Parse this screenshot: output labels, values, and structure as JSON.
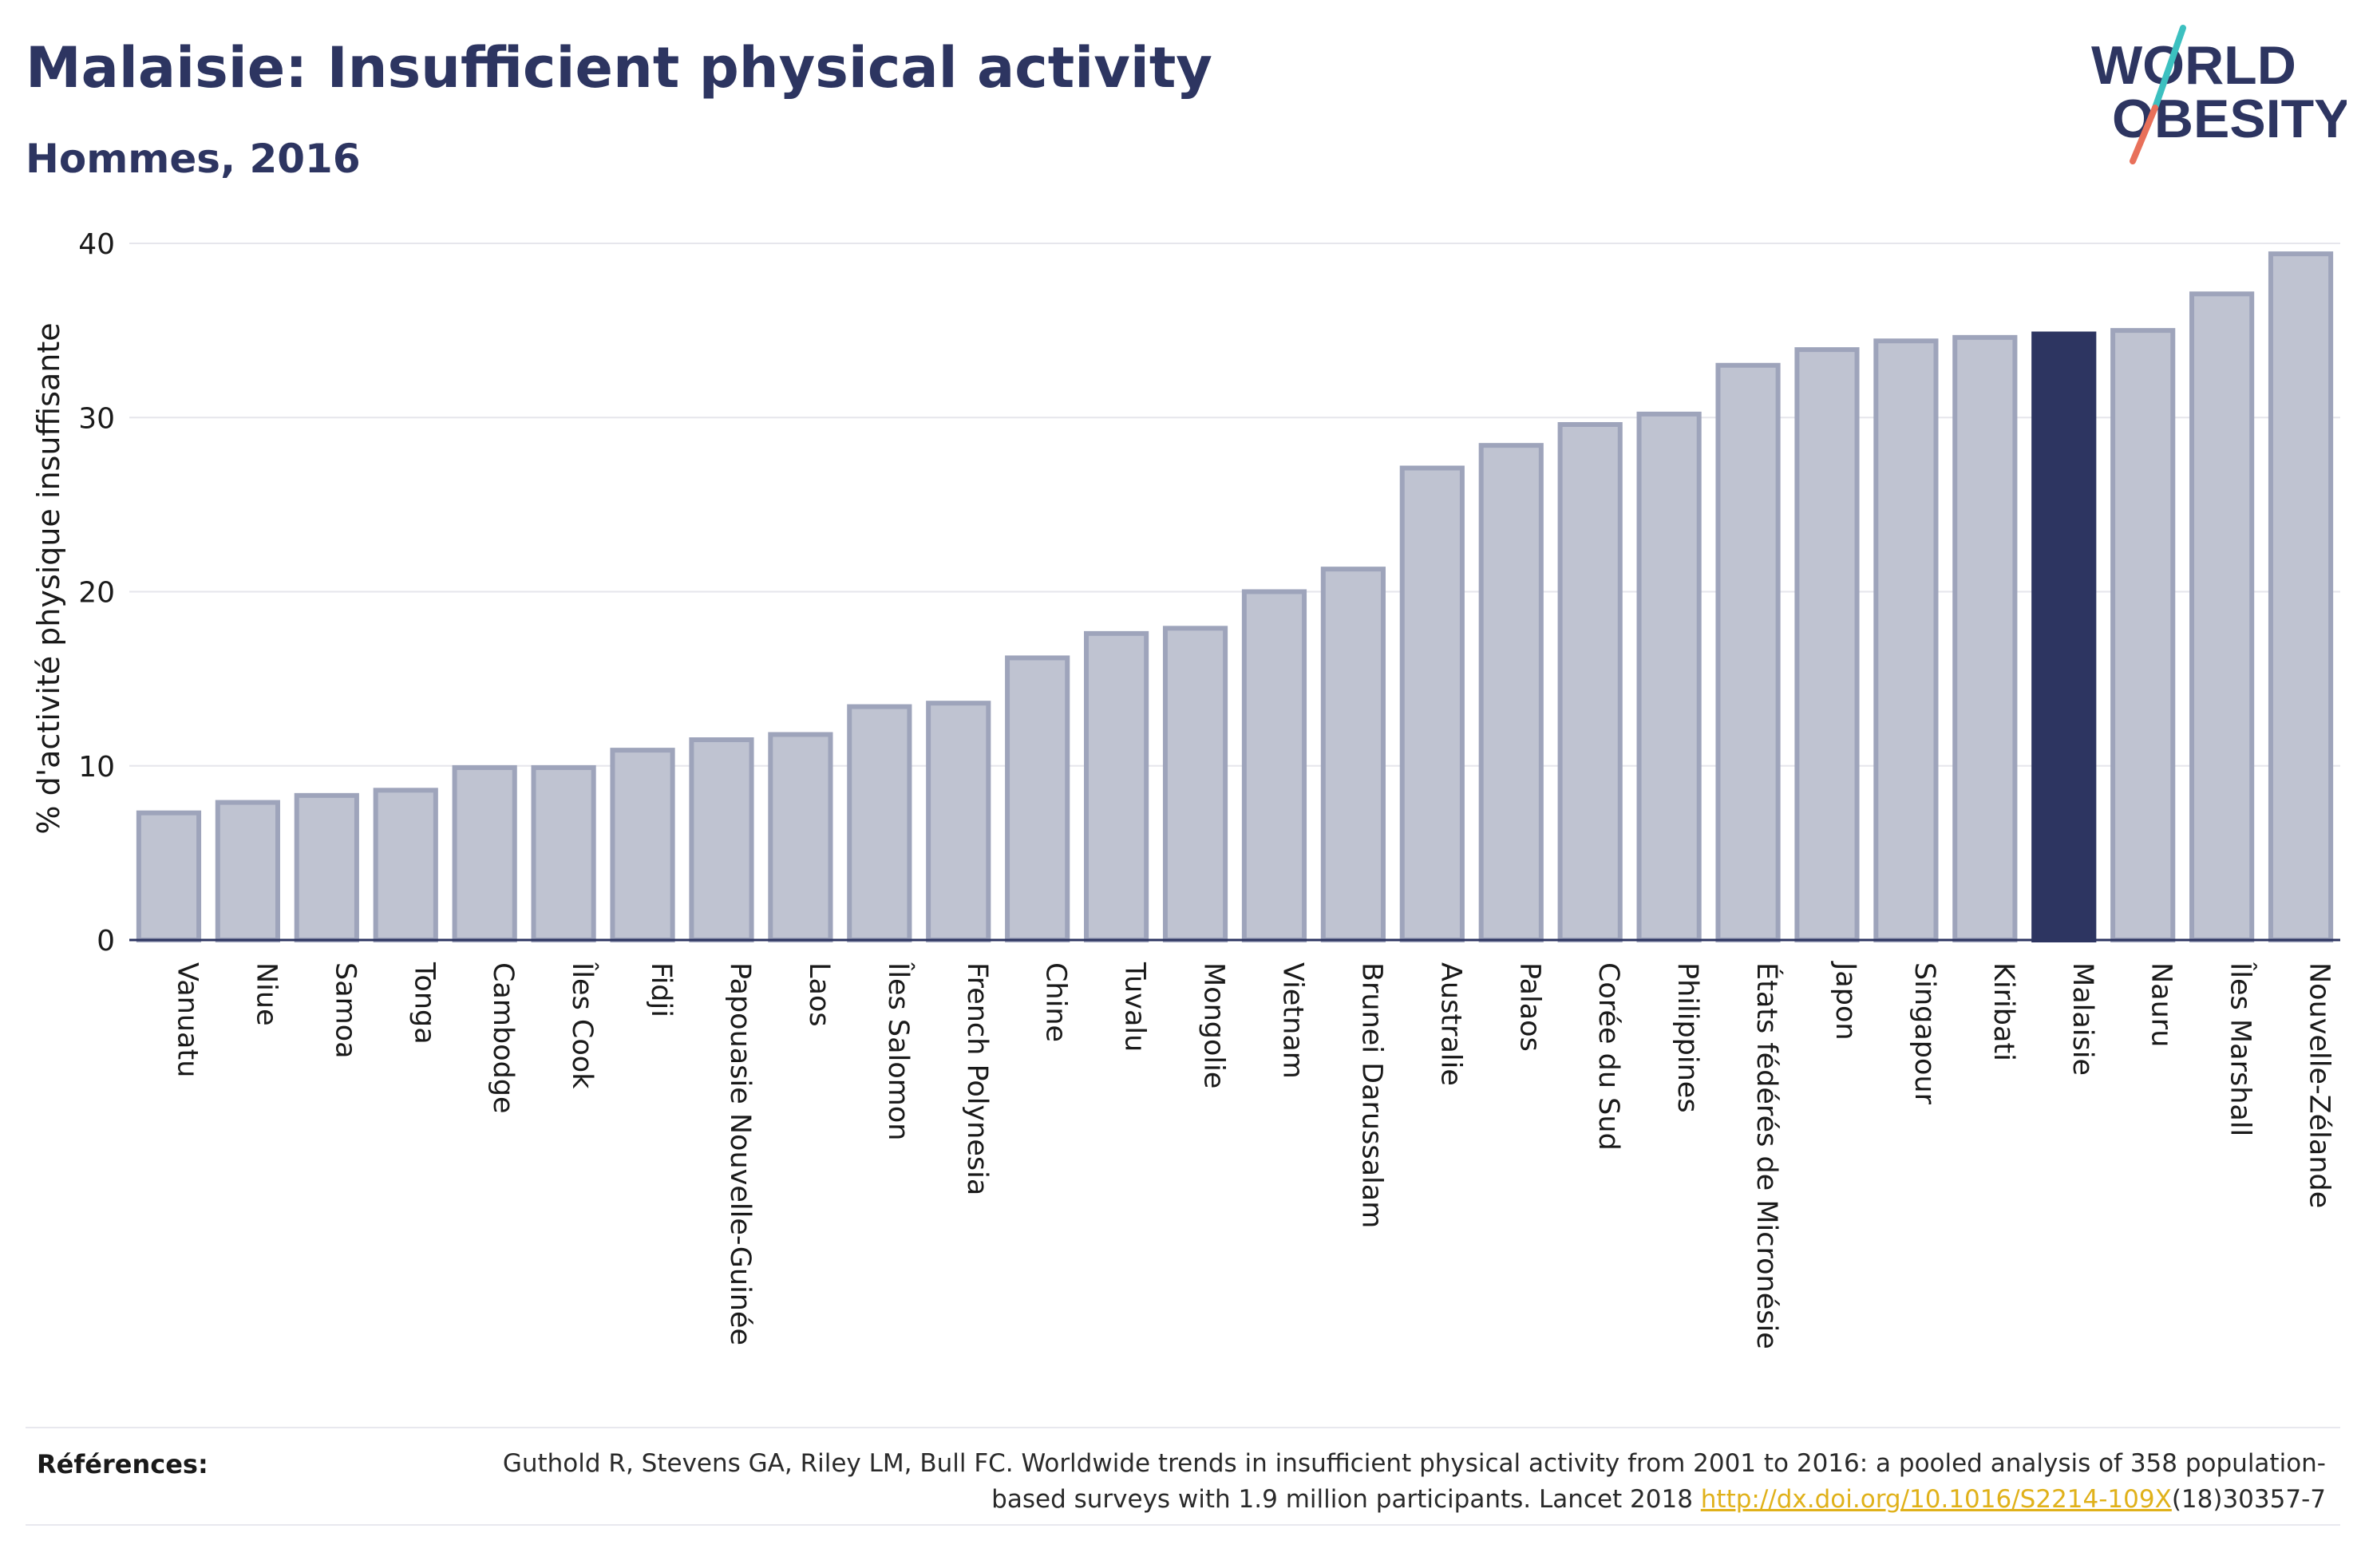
{
  "header": {
    "title": "Malaisie: Insufficient physical activity",
    "subtitle": "Hommes, 2016"
  },
  "logo": {
    "line1": "WORLD",
    "line2": "OBESITY",
    "colors": {
      "text": "#2d3561",
      "slash_teal": "#3cc0c0",
      "slash_coral": "#e8705a"
    }
  },
  "colors": {
    "bar_fill": "#bfc3d1",
    "bar_stroke": "#9ea4bb",
    "highlight": "#2d3561",
    "grid": "#e6e6ec",
    "axis": "#2d3561",
    "text": "#1a1a1a"
  },
  "chart_data": {
    "type": "bar",
    "title": "Malaisie: Insufficient physical activity",
    "subtitle": "Hommes, 2016",
    "xlabel": "",
    "ylabel": "% d'activité physique insuffisante",
    "ylim": [
      0,
      40
    ],
    "yticks": [
      0,
      10,
      20,
      30,
      40
    ],
    "grid": true,
    "highlight": "Malaisie",
    "categories": [
      "Vanuatu",
      "Niue",
      "Samoa",
      "Tonga",
      "Cambodge",
      "Îles Cook",
      "Fidji",
      "Papouasie Nouvelle-Guinée",
      "Laos",
      "Îles Salomon",
      "French Polynesia",
      "Chine",
      "Tuvalu",
      "Mongolie",
      "Vietnam",
      "Brunei Darussalam",
      "Australie",
      "Palaos",
      "Corée du Sud",
      "Philippines",
      "États fédérés de Micronésie",
      "Japon",
      "Singapour",
      "Kiribati",
      "Malaisie",
      "Nauru",
      "Îles Marshall",
      "Nouvelle-Zélande"
    ],
    "values": [
      7.3,
      7.9,
      8.3,
      8.6,
      9.9,
      9.9,
      10.9,
      11.5,
      11.8,
      13.4,
      13.6,
      16.2,
      17.6,
      17.9,
      20.0,
      21.3,
      27.1,
      28.4,
      29.6,
      30.2,
      33.0,
      33.9,
      34.4,
      34.6,
      34.8,
      35.0,
      37.1,
      39.4
    ]
  },
  "references": {
    "label": "Références:",
    "text_before": "Guthold R, Stevens GA, Riley LM, Bull FC. Worldwide trends in insufficient physical activity from 2001 to 2016: a pooled analysis of 358 population-based surveys with 1.9 million participants. Lancet 2018 ",
    "link_text": "http://dx.doi.org/10.1016/S2214-109X",
    "text_after": "(18)30357-7"
  }
}
